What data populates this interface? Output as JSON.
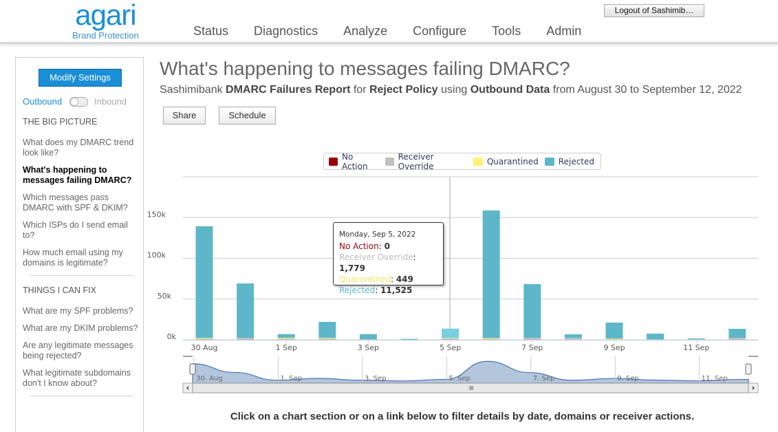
{
  "header": {
    "logo_word": "agari",
    "logo_sub": "Brand Protection",
    "nav": [
      "Status",
      "Diagnostics",
      "Analyze",
      "Configure",
      "Tools",
      "Admin"
    ],
    "logout": "Logout of Sashimib…"
  },
  "sidebar": {
    "modify": "Modify Settings",
    "toggle_left": "Outbound",
    "toggle_right": "Inbound",
    "toggle_state": "Outbound",
    "sections": [
      {
        "title": "THE BIG PICTURE",
        "items": [
          "What does my DMARC trend look like?",
          "What's happening to messages failing DMARC?",
          "Which messages pass DMARC with SPF & DKIM?",
          "Which ISPs do I send email to?",
          "How much email using my domains is legitimate?"
        ]
      },
      {
        "title": "THINGS I CAN FIX",
        "items": [
          "What are my SPF problems?",
          "What are my DKIM problems?",
          "Are any legitimate messages being rejected?",
          "What legitimate subdomains don't I know about?"
        ]
      }
    ],
    "active_item": "What's happening to messages failing DMARC?"
  },
  "page": {
    "title": "What's happening to messages failing DMARC?",
    "subtitle": {
      "p1": "Sashimibank ",
      "b1": "DMARC Failures Report",
      "p2": " for ",
      "b2": "Reject Policy",
      "p3": " using ",
      "b3": "Outbound Data",
      "p4": " from August 30 to September 12, 2022"
    },
    "share": "Share",
    "schedule": "Schedule",
    "footer": "Click on a chart section or on a link below to filter details by date, domains or receiver actions."
  },
  "tooltip": {
    "date": "Monday, Sep 5, 2022",
    "rows": [
      {
        "label": "No Action",
        "value": "0"
      },
      {
        "label": "Receiver Override",
        "value": "1,779"
      },
      {
        "label": "Quarantined",
        "value": "449"
      },
      {
        "label": "Rejected",
        "value": "11,525"
      }
    ]
  },
  "chart_data": {
    "type": "bar",
    "stacked": true,
    "categories": [
      "30 Aug",
      "31 Aug",
      "1 Sep",
      "2 Sep",
      "3 Sep",
      "4 Sep",
      "5 Sep",
      "6 Sep",
      "7 Sep",
      "8 Sep",
      "9 Sep",
      "10 Sep",
      "11 Sep",
      "12 Sep"
    ],
    "x_tick_labels": [
      "30 Aug",
      "1 Sep",
      "3 Sep",
      "5 Sep",
      "7 Sep",
      "9 Sep",
      "11 Sep"
    ],
    "navigator_labels": [
      "30. Aug",
      "1. Sep",
      "3. Sep",
      "5. Sep",
      "7. Sep",
      "9. Sep",
      "11. Sep"
    ],
    "y_tick_labels": [
      "0k",
      "50k",
      "100k",
      "150k"
    ],
    "ylim": [
      0,
      200000
    ],
    "grid": true,
    "legend": "top-center",
    "highlighted": "5 Sep",
    "series": [
      {
        "name": "No Action",
        "color": "#99000d",
        "values": [
          0,
          0,
          0,
          0,
          0,
          0,
          0,
          0,
          0,
          0,
          0,
          0,
          0,
          0
        ]
      },
      {
        "name": "Receiver Override",
        "color": "#c0c0c0",
        "values": [
          1500,
          2500,
          1500,
          1500,
          800,
          200,
          1779,
          1200,
          2500,
          2300,
          600,
          600,
          800,
          2500
        ]
      },
      {
        "name": "Quarantined",
        "color": "#fff176",
        "values": [
          800,
          0,
          1000,
          800,
          0,
          0,
          449,
          1000,
          0,
          0,
          800,
          0,
          0,
          0
        ]
      },
      {
        "name": "Rejected",
        "color": "#5db7c9",
        "values": [
          137000,
          66700,
          4500,
          19700,
          6200,
          900,
          11525,
          156500,
          65900,
          4500,
          19700,
          7000,
          900,
          11000
        ]
      }
    ]
  }
}
